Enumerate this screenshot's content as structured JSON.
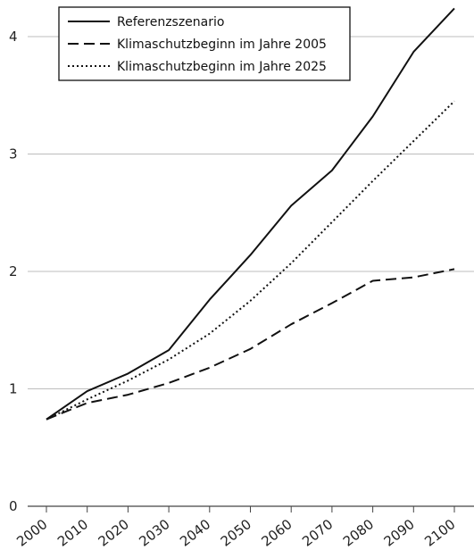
{
  "chart_data": {
    "type": "line",
    "x": [
      2000,
      2010,
      2020,
      2030,
      2040,
      2050,
      2060,
      2070,
      2080,
      2090,
      2100
    ],
    "xlim": [
      2000,
      2100
    ],
    "ylim": [
      0,
      4.3
    ],
    "y_ticks": [
      0,
      1,
      2,
      3,
      4
    ],
    "grid": true,
    "legend_position": "top-left",
    "series": [
      {
        "name": "Referenzszenario",
        "style": "solid",
        "values": [
          0.74,
          0.98,
          1.13,
          1.33,
          1.76,
          2.14,
          2.56,
          2.86,
          3.32,
          3.87,
          4.24
        ]
      },
      {
        "name": "Klimaschutzbeginn im Jahre 2005",
        "style": "dashed",
        "values": [
          0.74,
          0.88,
          0.95,
          1.05,
          1.18,
          1.34,
          1.55,
          1.73,
          1.92,
          1.95,
          2.02
        ]
      },
      {
        "name": "Klimaschutzbeginn im Jahre 2025",
        "style": "dotted",
        "values": [
          0.74,
          0.91,
          1.07,
          1.25,
          1.47,
          1.75,
          2.07,
          2.42,
          2.77,
          3.11,
          3.45
        ]
      }
    ]
  },
  "colors": {
    "line": "#111111",
    "grid": "#bdbdbd",
    "axis": "#444444"
  }
}
